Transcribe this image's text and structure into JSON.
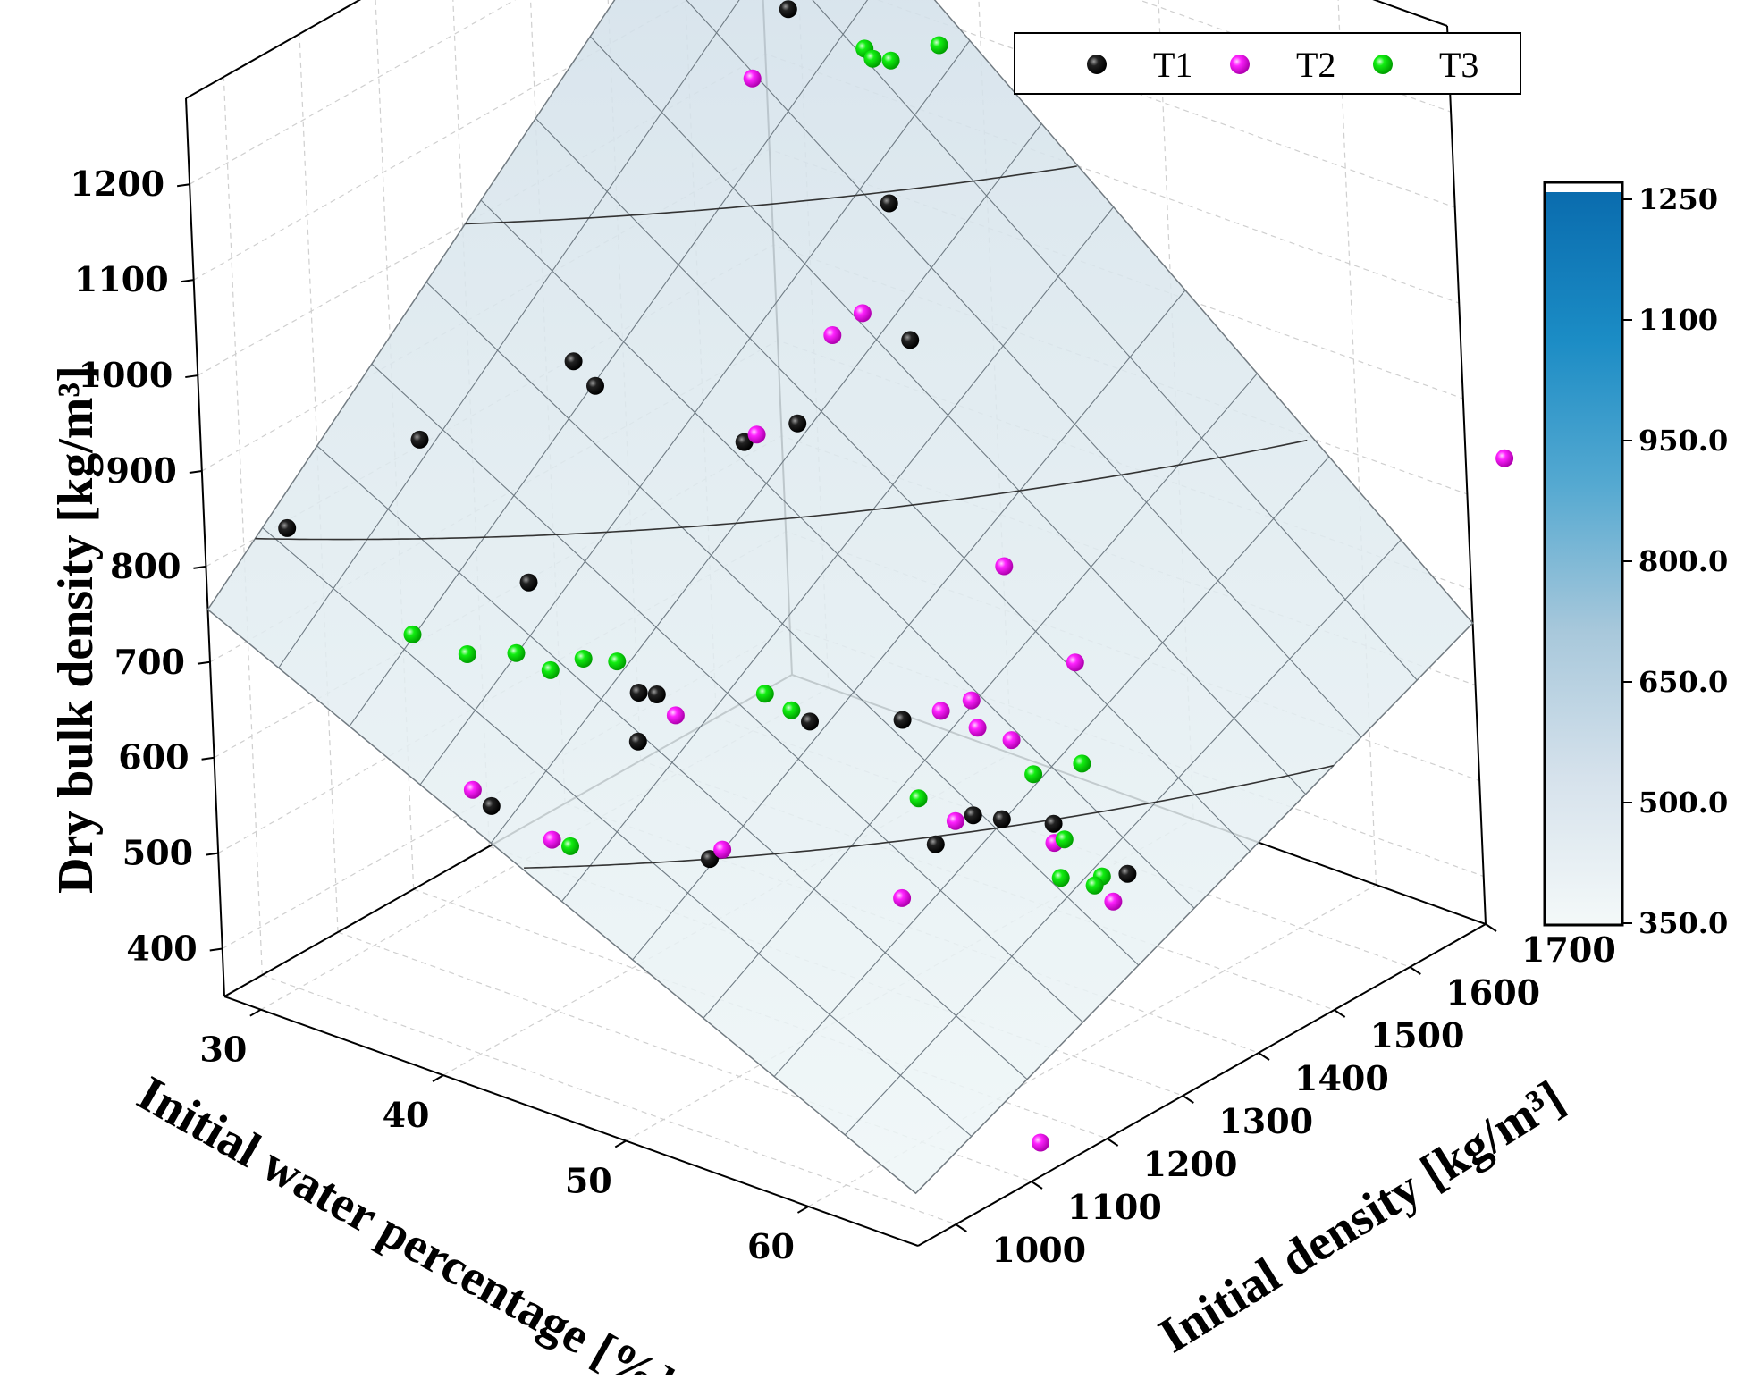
{
  "chart_data": {
    "type": "scatter3d",
    "title": "",
    "axes": {
      "x": {
        "label": "Initial water percentage [%]",
        "range": [
          28,
          66
        ],
        "ticks": [
          "30",
          "40",
          "50",
          "60"
        ]
      },
      "y": {
        "label": "Initial density [kg/m³]",
        "range": [
          950,
          1700
        ],
        "ticks": [
          "1000",
          "1100",
          "1200",
          "1300",
          "1400",
          "1500",
          "1600",
          "1700"
        ]
      },
      "z": {
        "label": "Dry bulk density [kg/m³]",
        "range": [
          350,
          1290
        ],
        "ticks": [
          "400",
          "500",
          "600",
          "700",
          "800",
          "900",
          "1000",
          "1100",
          "1200"
        ]
      }
    },
    "surface": {
      "type": "plane",
      "x_range": [
        28,
        66
      ],
      "y_range": [
        950,
        1700
      ],
      "z_at_corners": {
        "x28_y950": 755,
        "x66_y950": 405,
        "x28_y1700": 1275,
        "x66_y1700": 665
      },
      "contours": [
        400,
        600,
        800,
        1000,
        1200
      ],
      "grid_divisions": 10
    },
    "colorbar": {
      "ticks": [
        "1250",
        "1100",
        "950.0",
        "800.0",
        "650.0",
        "500.0",
        "350.0"
      ],
      "range": [
        350,
        1250
      ],
      "colors": [
        "#f3f8f9",
        "#d5e2ec",
        "#9fc6db",
        "#4ea6d0",
        "#1a8bc5",
        "#0a6fb1"
      ]
    },
    "legend": [
      {
        "label": "T1",
        "color": "#000000"
      },
      {
        "label": "T2",
        "color": "#ff00ff"
      },
      {
        "label": "T3",
        "color": "#00ee00"
      }
    ],
    "series": [
      {
        "name": "T1",
        "points": [
          [
            38,
            1500,
            1205
          ],
          [
            36,
            1620,
            1300
          ],
          [
            36,
            1640,
            1270
          ],
          [
            41,
            1550,
            1000
          ],
          [
            44,
            1350,
            880
          ],
          [
            44,
            1500,
            900
          ],
          [
            41,
            1350,
            840
          ],
          [
            36,
            1250,
            935
          ],
          [
            32,
            1140,
            875
          ],
          [
            35,
            1300,
            880
          ],
          [
            27,
            1080,
            775
          ],
          [
            36,
            1180,
            735
          ],
          [
            41,
            1200,
            645
          ],
          [
            42,
            1200,
            650
          ],
          [
            43,
            1150,
            630
          ],
          [
            47,
            1280,
            620
          ],
          [
            50,
            1330,
            620
          ],
          [
            39,
            1050,
            580
          ],
          [
            48,
            1120,
            555
          ],
          [
            55,
            1250,
            560
          ],
          [
            55,
            1300,
            568
          ],
          [
            56,
            1380,
            530
          ],
          [
            54,
            1360,
            530
          ],
          [
            60,
            1380,
            505
          ],
          [
            39,
            1630,
            1290
          ]
        ]
      },
      {
        "name": "T2",
        "points": [
          [
            36,
            1700,
            1283
          ],
          [
            36,
            1640,
            1275
          ],
          [
            38,
            1450,
            1155
          ],
          [
            50,
            1720,
            1110
          ],
          [
            44,
            1400,
            950
          ],
          [
            44,
            1440,
            955
          ],
          [
            43,
            1320,
            875
          ],
          [
            53,
            1400,
            770
          ],
          [
            55,
            1440,
            665
          ],
          [
            50,
            1380,
            607
          ],
          [
            50,
            1420,
            600
          ],
          [
            52,
            1380,
            603
          ],
          [
            53,
            1400,
            588
          ],
          [
            43,
            1200,
            635
          ],
          [
            38,
            1050,
            590
          ],
          [
            41,
            1080,
            545
          ],
          [
            47,
            1160,
            540
          ],
          [
            54,
            1300,
            555
          ],
          [
            56,
            1380,
            510
          ],
          [
            60,
            1360,
            485
          ],
          [
            53,
            1250,
            490
          ],
          [
            66,
            1750,
            815
          ],
          [
            64,
            1160,
            350
          ]
        ]
      },
      {
        "name": "T3",
        "points": [
          [
            38,
            1640,
            1295
          ],
          [
            36,
            1570,
            1272
          ],
          [
            40,
            1550,
            1155
          ],
          [
            40,
            1560,
            1140
          ],
          [
            41,
            1560,
            1145
          ],
          [
            42,
            1600,
            1150
          ],
          [
            32,
            1120,
            680
          ],
          [
            35,
            1120,
            680
          ],
          [
            36,
            1160,
            670
          ],
          [
            38,
            1200,
            660
          ],
          [
            39,
            1220,
            655
          ],
          [
            37,
            1180,
            650
          ],
          [
            45,
            1270,
            640
          ],
          [
            46,
            1280,
            625
          ],
          [
            55,
            1380,
            575
          ],
          [
            56,
            1420,
            575
          ],
          [
            52,
            1300,
            565
          ],
          [
            57,
            1370,
            525
          ],
          [
            58,
            1340,
            505
          ],
          [
            59,
            1370,
            500
          ],
          [
            59,
            1360,
            495
          ],
          [
            42,
            1080,
            545
          ]
        ]
      }
    ]
  }
}
